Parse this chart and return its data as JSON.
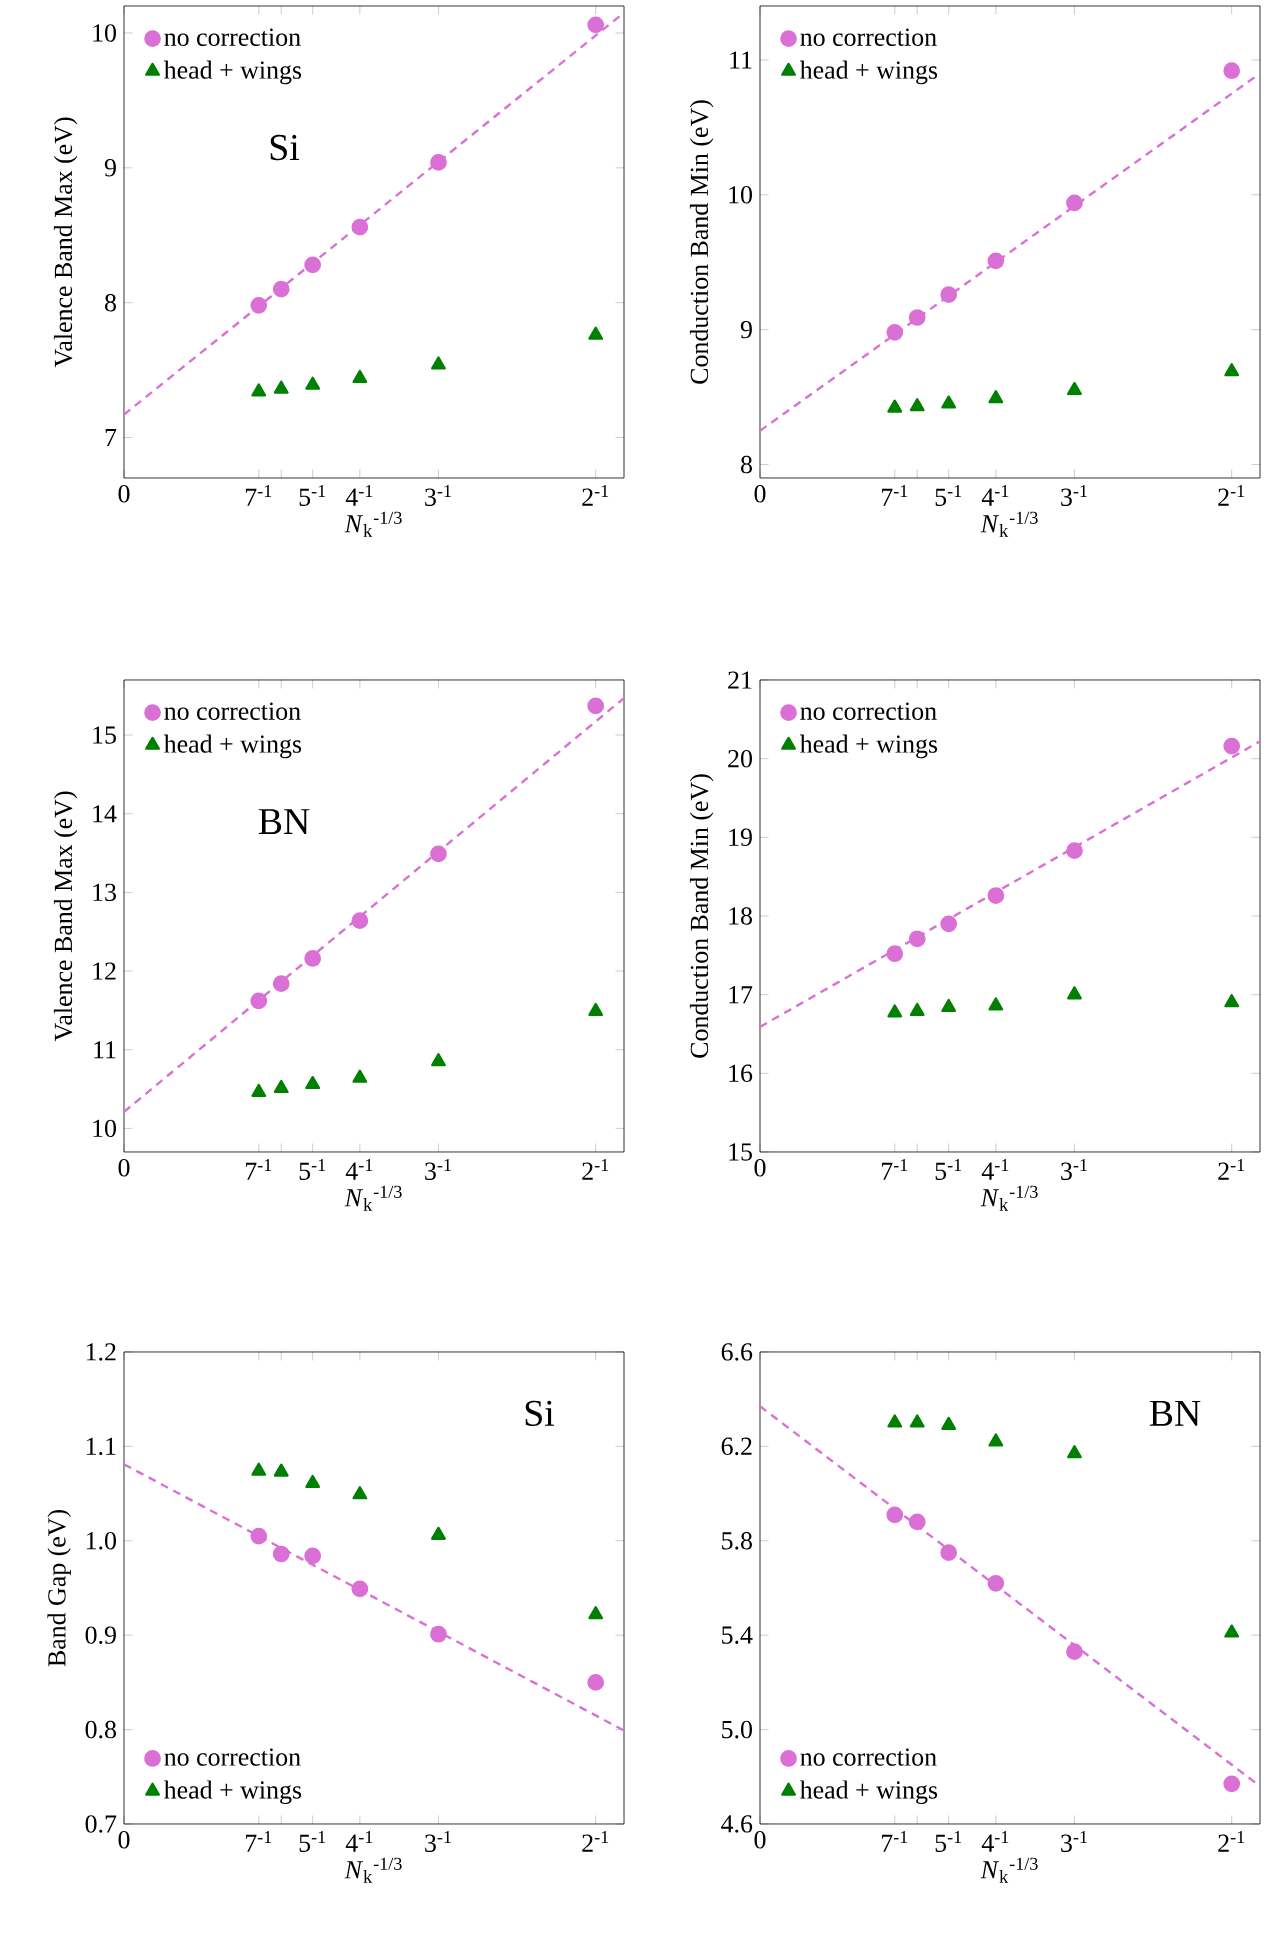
{
  "chart_data": [
    {
      "type": "scatter",
      "ylabel": "Valence Band Max (eV)",
      "xlabel": "*N*$_{k}$$^{-1/3}$",
      "annotations": [
        "Si"
      ],
      "legend": "top left",
      "xlim": [
        0,
        0.53
      ],
      "ylim": [
        6.7,
        10.2
      ],
      "yticks": [
        7,
        8,
        9,
        10
      ],
      "xticks": [
        0,
        {
          "value": 0.142857,
          "label": "7$^{-1}$"
        },
        {
          "value": 0.166667,
          "label": null
        },
        {
          "value": 0.2,
          "label": "5$^{-1}$"
        },
        {
          "value": 0.25,
          "label": "4$^{-1}$"
        },
        {
          "value": 0.333333,
          "label": "3$^{-1}$"
        },
        {
          "value": 0.5,
          "label": "2$^{-1}$"
        }
      ],
      "series": [
        {
          "name": "no correction",
          "color": "#da70d6",
          "marker": "circle",
          "x": [
            0.142857,
            0.166667,
            0.2,
            0.25,
            0.333333,
            0.5
          ],
          "values": [
            7.98,
            8.1,
            8.28,
            8.56,
            9.04,
            10.06
          ]
        },
        {
          "name": "head + wings",
          "color": "#008000",
          "marker": "triangle",
          "x": [
            0.142857,
            0.166667,
            0.2,
            0.25,
            0.333333,
            0.5
          ],
          "values": [
            7.34,
            7.36,
            7.39,
            7.44,
            7.54,
            7.76
          ]
        },
        {
          "type": "line",
          "color": "#da70d6",
          "line_style": "dashed",
          "marker": "none",
          "x": [
            0,
            0.53
          ],
          "values": [
            7.17,
            10.15
          ]
        }
      ]
    },
    {
      "type": "scatter",
      "ylabel": "Conduction Band Min (eV)",
      "xlabel": "*N*$_{k}$$^{-1/3}$",
      "legend": "top left",
      "xlim": [
        0,
        0.53
      ],
      "ylim": [
        7.9,
        11.4
      ],
      "yticks": [
        8,
        9,
        10,
        11
      ],
      "xticks": [
        0,
        {
          "value": 0.142857,
          "label": "7$^{-1}$"
        },
        {
          "value": 0.166667,
          "label": null
        },
        {
          "value": 0.2,
          "label": "5$^{-1}$"
        },
        {
          "value": 0.25,
          "label": "4$^{-1}$"
        },
        {
          "value": 0.333333,
          "label": "3$^{-1}$"
        },
        {
          "value": 0.5,
          "label": "2$^{-1}$"
        }
      ],
      "series": [
        {
          "name": "no correction",
          "color": "#da70d6",
          "marker": "circle",
          "x": [
            0.142857,
            0.166667,
            0.2,
            0.25,
            0.333333,
            0.5
          ],
          "values": [
            8.98,
            9.09,
            9.26,
            9.51,
            9.94,
            10.92
          ]
        },
        {
          "name": "head + wings",
          "color": "#008000",
          "marker": "triangle",
          "x": [
            0.142857,
            0.166667,
            0.2,
            0.25,
            0.333333,
            0.5
          ],
          "values": [
            8.42,
            8.43,
            8.45,
            8.49,
            8.55,
            8.69
          ]
        },
        {
          "type": "line",
          "color": "#da70d6",
          "line_style": "dashed",
          "marker": "none",
          "x": [
            0,
            0.53
          ],
          "values": [
            8.25,
            10.9
          ]
        }
      ]
    },
    {
      "type": "scatter",
      "ylabel": "Valence Band Max (eV)",
      "xlabel": "*N*$_{k}$$^{-1/3}$",
      "annotations": [
        "BN"
      ],
      "legend": "top left",
      "xlim": [
        0,
        0.53
      ],
      "ylim": [
        9.7,
        15.7
      ],
      "yticks": [
        10,
        11,
        12,
        13,
        14,
        15
      ],
      "xticks": [
        0,
        {
          "value": 0.142857,
          "label": "7$^{-1}$"
        },
        {
          "value": 0.166667,
          "label": null
        },
        {
          "value": 0.2,
          "label": "5$^{-1}$"
        },
        {
          "value": 0.25,
          "label": "4$^{-1}$"
        },
        {
          "value": 0.333333,
          "label": "3$^{-1}$"
        },
        {
          "value": 0.5,
          "label": "2$^{-1}$"
        }
      ],
      "series": [
        {
          "name": "no correction",
          "color": "#da70d6",
          "marker": "circle",
          "x": [
            0.142857,
            0.166667,
            0.2,
            0.25,
            0.333333,
            0.5
          ],
          "values": [
            11.62,
            11.84,
            12.16,
            12.64,
            13.49,
            15.37
          ]
        },
        {
          "name": "head + wings",
          "color": "#008000",
          "marker": "triangle",
          "x": [
            0.142857,
            0.166667,
            0.2,
            0.25,
            0.333333,
            0.5
          ],
          "values": [
            10.46,
            10.51,
            10.56,
            10.64,
            10.85,
            11.49
          ]
        },
        {
          "type": "line",
          "color": "#da70d6",
          "line_style": "dashed",
          "marker": "none",
          "x": [
            0,
            0.53
          ],
          "values": [
            10.21,
            15.47
          ]
        }
      ]
    },
    {
      "type": "scatter",
      "ylabel": "Conduction Band Min (eV)",
      "xlabel": "*N*$_{k}$$^{-1/3}$",
      "legend": "top left",
      "xlim": [
        0,
        0.53
      ],
      "ylim": [
        15,
        21
      ],
      "yticks": [
        15,
        16,
        17,
        18,
        19,
        20,
        21
      ],
      "xticks": [
        0,
        {
          "value": 0.142857,
          "label": "7$^{-1}$"
        },
        {
          "value": 0.166667,
          "label": null
        },
        {
          "value": 0.2,
          "label": "5$^{-1}$"
        },
        {
          "value": 0.25,
          "label": "4$^{-1}$"
        },
        {
          "value": 0.333333,
          "label": "3$^{-1}$"
        },
        {
          "value": 0.5,
          "label": "2$^{-1}$"
        }
      ],
      "series": [
        {
          "name": "no correction",
          "color": "#da70d6",
          "marker": "circle",
          "x": [
            0.142857,
            0.166667,
            0.2,
            0.25,
            0.333333,
            0.5
          ],
          "values": [
            17.52,
            17.71,
            17.9,
            18.26,
            18.83,
            20.16
          ]
        },
        {
          "name": "head + wings",
          "color": "#008000",
          "marker": "triangle",
          "x": [
            0.142857,
            0.166667,
            0.2,
            0.25,
            0.333333,
            0.5
          ],
          "values": [
            16.77,
            16.79,
            16.84,
            16.86,
            17.0,
            16.9
          ]
        },
        {
          "type": "line",
          "color": "#da70d6",
          "line_style": "dashed",
          "marker": "none",
          "x": [
            0,
            0.53
          ],
          "values": [
            16.59,
            20.22
          ]
        }
      ]
    },
    {
      "type": "scatter",
      "ylabel": "Band Gap (eV)",
      "xlabel": "*N*$_{k}$$^{-1/3}$",
      "annotations": [
        "Si"
      ],
      "legend": "bottom left",
      "xlim": [
        0,
        0.53
      ],
      "ylim": [
        0.7,
        1.2
      ],
      "yticks": [
        {
          "value": 0.7,
          "label": "0.7"
        },
        {
          "value": 0.8,
          "label": "0.8"
        },
        {
          "value": 0.9,
          "label": "0.9"
        },
        {
          "value": 1.0,
          "label": "1.0"
        },
        {
          "value": 1.1,
          "label": "1.1"
        },
        {
          "value": 1.2,
          "label": "1.2"
        }
      ],
      "xticks": [
        0,
        {
          "value": 0.142857,
          "label": "7$^{-1}$"
        },
        {
          "value": 0.166667,
          "label": null
        },
        {
          "value": 0.2,
          "label": "5$^{-1}$"
        },
        {
          "value": 0.25,
          "label": "4$^{-1}$"
        },
        {
          "value": 0.333333,
          "label": "3$^{-1}$"
        },
        {
          "value": 0.5,
          "label": "2$^{-1}$"
        }
      ],
      "series": [
        {
          "name": "no correction",
          "color": "#da70d6",
          "marker": "circle",
          "x": [
            0.142857,
            0.166667,
            0.2,
            0.25,
            0.333333,
            0.5
          ],
          "values": [
            1.005,
            0.986,
            0.984,
            0.949,
            0.901,
            0.85
          ]
        },
        {
          "name": "head + wings",
          "color": "#008000",
          "marker": "triangle",
          "x": [
            0.142857,
            0.166667,
            0.2,
            0.25,
            0.333333,
            0.5
          ],
          "values": [
            1.074,
            1.073,
            1.061,
            1.049,
            1.006,
            0.922
          ]
        },
        {
          "type": "line",
          "color": "#da70d6",
          "line_style": "dashed",
          "marker": "none",
          "x": [
            0,
            0.53
          ],
          "values": [
            1.081,
            0.799
          ]
        }
      ]
    },
    {
      "type": "scatter",
      "xlabel": "*N*$_{k}$$^{-1/3}$",
      "annotations": [
        "BN"
      ],
      "legend": "bottom left",
      "xlim": [
        0,
        0.53
      ],
      "ylim": [
        4.6,
        6.6
      ],
      "yticks": [
        {
          "value": 4.6,
          "label": "4.6"
        },
        {
          "value": 5.0,
          "label": "5.0"
        },
        {
          "value": 5.4,
          "label": "5.4"
        },
        {
          "value": 5.8,
          "label": "5.8"
        },
        {
          "value": 6.2,
          "label": "6.2"
        },
        {
          "value": 6.6,
          "label": "6.6"
        }
      ],
      "xticks": [
        0,
        {
          "value": 0.142857,
          "label": "7$^{-1}$"
        },
        {
          "value": 0.166667,
          "label": null
        },
        {
          "value": 0.2,
          "label": "5$^{-1}$"
        },
        {
          "value": 0.25,
          "label": "4$^{-1}$"
        },
        {
          "value": 0.333333,
          "label": "3$^{-1}$"
        },
        {
          "value": 0.5,
          "label": "2$^{-1}$"
        }
      ],
      "series": [
        {
          "name": "no correction",
          "color": "#da70d6",
          "marker": "circle",
          "x": [
            0.142857,
            0.166667,
            0.2,
            0.25,
            0.333333,
            0.5
          ],
          "values": [
            5.91,
            5.88,
            5.75,
            5.62,
            5.33,
            4.77
          ]
        },
        {
          "name": "head + wings",
          "color": "#008000",
          "marker": "triangle",
          "x": [
            0.142857,
            0.166667,
            0.2,
            0.25,
            0.333333,
            0.5
          ],
          "values": [
            6.3,
            6.3,
            6.29,
            6.22,
            6.17,
            5.41
          ]
        },
        {
          "type": "line",
          "color": "#da70d6",
          "line_style": "dashed",
          "marker": "none",
          "x": [
            0,
            0.53
          ],
          "values": [
            6.37,
            4.76
          ]
        }
      ]
    }
  ]
}
